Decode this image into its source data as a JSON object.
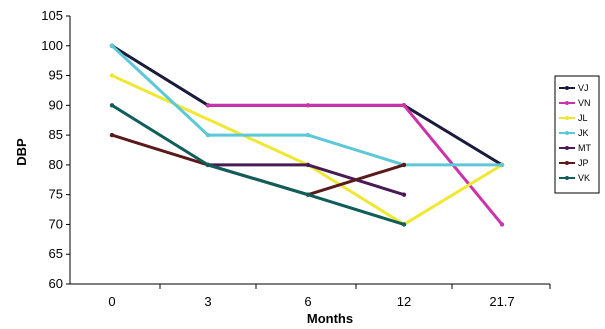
{
  "chart_data": {
    "type": "line",
    "xlabel": "Months",
    "ylabel": "DBP",
    "categories": [
      "0",
      "3",
      "6",
      "12",
      "21.7"
    ],
    "ylim": [
      60,
      105
    ],
    "y_ticks": [
      60,
      65,
      70,
      75,
      80,
      85,
      90,
      95,
      100,
      105
    ],
    "grid": false,
    "legend_position": "right",
    "series": [
      {
        "name": "VJ",
        "color": "#1a1a3a",
        "points": [
          [
            0,
            100
          ],
          [
            3,
            90
          ],
          [
            12,
            90
          ],
          [
            21.7,
            80
          ]
        ]
      },
      {
        "name": "VN",
        "color": "#cc33aa",
        "points": [
          [
            3,
            90
          ],
          [
            6,
            90
          ],
          [
            12,
            90
          ],
          [
            21.7,
            70
          ]
        ]
      },
      {
        "name": "JL",
        "color": "#eee833",
        "points": [
          [
            0,
            95
          ],
          [
            6,
            80
          ],
          [
            12,
            70
          ],
          [
            21.7,
            80
          ]
        ]
      },
      {
        "name": "JK",
        "color": "#5cc8d8",
        "points": [
          [
            0,
            100
          ],
          [
            3,
            85
          ],
          [
            6,
            85
          ],
          [
            12,
            80
          ],
          [
            21.7,
            80
          ]
        ]
      },
      {
        "name": "MT",
        "color": "#4a1a55",
        "points": [
          [
            3,
            80
          ],
          [
            6,
            80
          ],
          [
            12,
            75
          ]
        ]
      },
      {
        "name": "JP",
        "color": "#5a1a1a",
        "points": [
          [
            0,
            85
          ],
          [
            3,
            80
          ],
          [
            6,
            75
          ],
          [
            12,
            80
          ]
        ]
      },
      {
        "name": "VK",
        "color": "#0e5e5a",
        "points": [
          [
            0,
            90
          ],
          [
            3,
            80
          ],
          [
            6,
            75
          ],
          [
            12,
            70
          ]
        ]
      }
    ]
  }
}
